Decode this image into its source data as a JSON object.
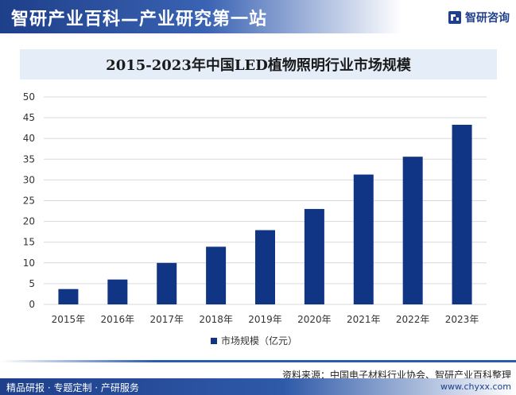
{
  "header": {
    "title": "智研产业百科—产业研究第一站",
    "brand_name": "智研咨询"
  },
  "chart_data": {
    "type": "bar",
    "title": "2015-2023年中国LED植物照明行业市场规模",
    "categories": [
      "2015年",
      "2016年",
      "2017年",
      "2018年",
      "2019年",
      "2020年",
      "2021年",
      "2022年",
      "2023年"
    ],
    "series": [
      {
        "name": "市场规模（亿元）",
        "values": [
          3.7,
          6.0,
          10.0,
          13.9,
          17.9,
          23.0,
          31.3,
          35.6,
          43.3
        ]
      }
    ],
    "ylim": [
      0,
      50
    ],
    "yticks": [
      0,
      5,
      10,
      15,
      20,
      25,
      30,
      35,
      40,
      45,
      50
    ],
    "grid": true,
    "legend": "bottom",
    "colors": {
      "bar": "#103584",
      "grid": "#d9d9d9"
    }
  },
  "source_text": "资料来源：中国电子材料行业协会、智研产业百科整理",
  "footer": {
    "left_text": "精品研报 · 专题定制 · 产研服务",
    "right_text": "www.chyxx.com"
  }
}
